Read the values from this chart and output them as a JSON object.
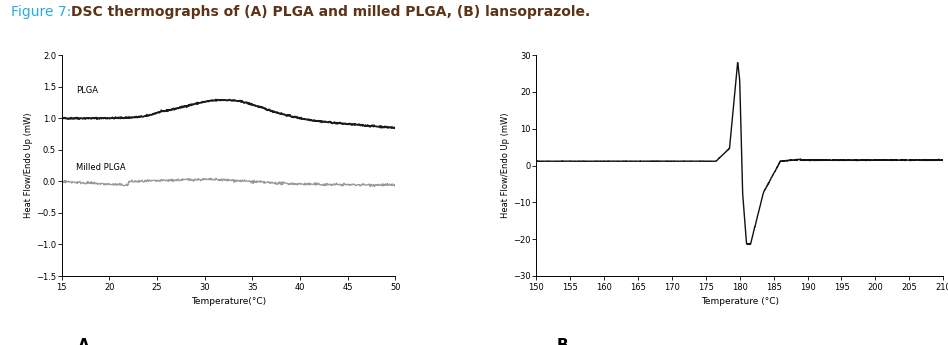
{
  "title_fig7": "Figure 7: ",
  "title_rest": "DSC thermographs of (A) PLGA and milled PLGA, (B) lansoprazole.",
  "title_color_fig7": "#29abe2",
  "title_color_rest": "#5c3317",
  "fig_bg": "#ffffff",
  "panel_A": {
    "xlabel": "Temperature(°C)",
    "ylabel": "Heat Flow/Endo Up (mW)",
    "xlim": [
      15,
      50
    ],
    "ylim": [
      -1.5,
      2.0
    ],
    "xticks": [
      15,
      20,
      25,
      30,
      35,
      40,
      45,
      50
    ],
    "yticks": [
      -1.5,
      -1.0,
      -0.5,
      0.0,
      0.5,
      1.0,
      1.5,
      2.0
    ],
    "plga_label": "PLGA",
    "milled_label": "Milled PLGA",
    "plga_color": "#1a1a1a",
    "milled_color": "#999999"
  },
  "panel_B": {
    "xlabel": "Temperature (°C)",
    "ylabel": "Heat Flow/Endo Up (mW)",
    "xlim": [
      150,
      210
    ],
    "ylim": [
      -30,
      30
    ],
    "xticks": [
      150,
      155,
      160,
      165,
      170,
      175,
      180,
      185,
      190,
      195,
      200,
      205,
      210
    ],
    "yticks": [
      -30,
      -20,
      -10,
      0,
      10,
      20,
      30
    ]
  }
}
